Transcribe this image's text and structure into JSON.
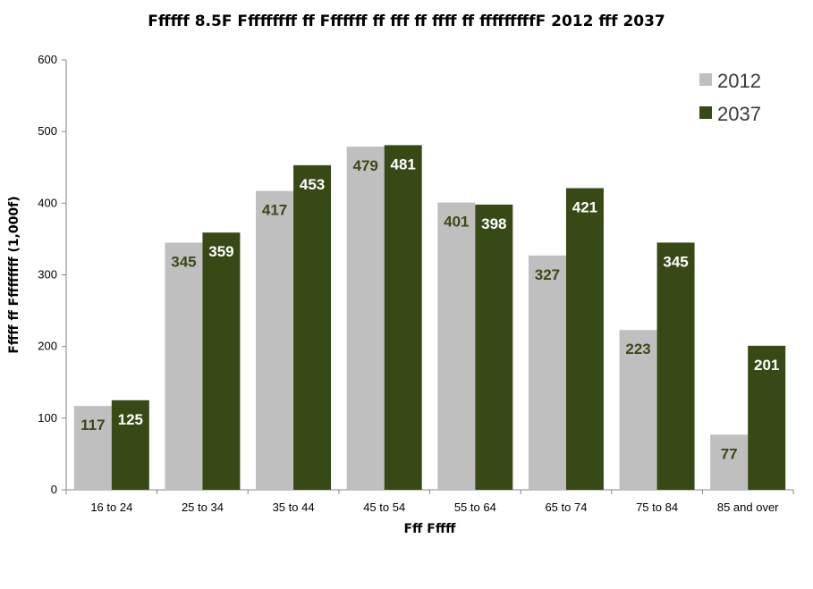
{
  "chart_data": {
    "type": "bar",
    "title": "Ffffff 8.5F Fffffffff ff Fffffff ff fff ff ffff ff fffffffffF 2012 fff 2037",
    "xlabel": "Fff Fffff",
    "ylabel": "Fffff ff Fffffffff (1,000f)",
    "ylim": [
      0,
      600
    ],
    "yticks": [
      0,
      100,
      200,
      300,
      400,
      500,
      600
    ],
    "categories": [
      "16 to 24",
      "25 to 34",
      "35 to 44",
      "45 to 54",
      "55 to 64",
      "65 to 74",
      "75 to 84",
      "85 and over"
    ],
    "series": [
      {
        "name": "2012",
        "color": "#bfbfbf",
        "label_color": "#3b4a14",
        "values": [
          117,
          345,
          417,
          479,
          401,
          327,
          223,
          77
        ]
      },
      {
        "name": "2037",
        "color": "#374a15",
        "label_color": "#ffffff",
        "values": [
          125,
          359,
          453,
          481,
          398,
          421,
          345,
          201
        ]
      }
    ],
    "legend_position": "top-right",
    "grid": false
  }
}
